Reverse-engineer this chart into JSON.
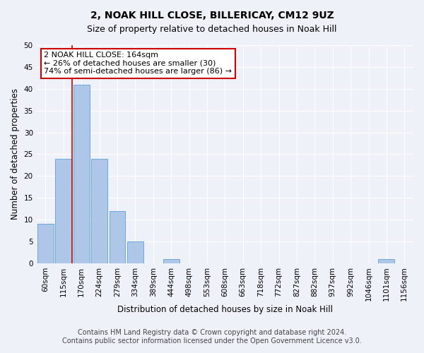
{
  "title": "2, NOAK HILL CLOSE, BILLERICAY, CM12 9UZ",
  "subtitle": "Size of property relative to detached houses in Noak Hill",
  "xlabel": "Distribution of detached houses by size in Noak Hill",
  "ylabel": "Number of detached properties",
  "bins": [
    "60sqm",
    "115sqm",
    "170sqm",
    "224sqm",
    "279sqm",
    "334sqm",
    "389sqm",
    "444sqm",
    "498sqm",
    "553sqm",
    "608sqm",
    "663sqm",
    "718sqm",
    "772sqm",
    "827sqm",
    "882sqm",
    "937sqm",
    "992sqm",
    "1046sqm",
    "1101sqm",
    "1156sqm"
  ],
  "values": [
    9,
    24,
    41,
    24,
    12,
    5,
    0,
    1,
    0,
    0,
    0,
    0,
    0,
    0,
    0,
    0,
    0,
    0,
    0,
    1,
    0
  ],
  "bar_color": "#aec6e8",
  "bar_edge_color": "#5a9fd4",
  "vline_x_index": 2,
  "vline_color": "#cc0000",
  "ylim": [
    0,
    50
  ],
  "yticks": [
    0,
    5,
    10,
    15,
    20,
    25,
    30,
    35,
    40,
    45,
    50
  ],
  "annotation_lines": [
    "2 NOAK HILL CLOSE: 164sqm",
    "← 26% of detached houses are smaller (30)",
    "74% of semi-detached houses are larger (86) →"
  ],
  "ann_fontsize": 8,
  "ann_edge_color": "#cc0000",
  "ann_face_color": "white",
  "footer_lines": [
    "Contains HM Land Registry data © Crown copyright and database right 2024.",
    "Contains public sector information licensed under the Open Government Licence v3.0."
  ],
  "background_color": "#eef2f8",
  "grid_color": "#ffffff",
  "title_fontsize": 10,
  "subtitle_fontsize": 9,
  "xlabel_fontsize": 8.5,
  "ylabel_fontsize": 8.5,
  "tick_fontsize": 7.5,
  "footer_fontsize": 7
}
